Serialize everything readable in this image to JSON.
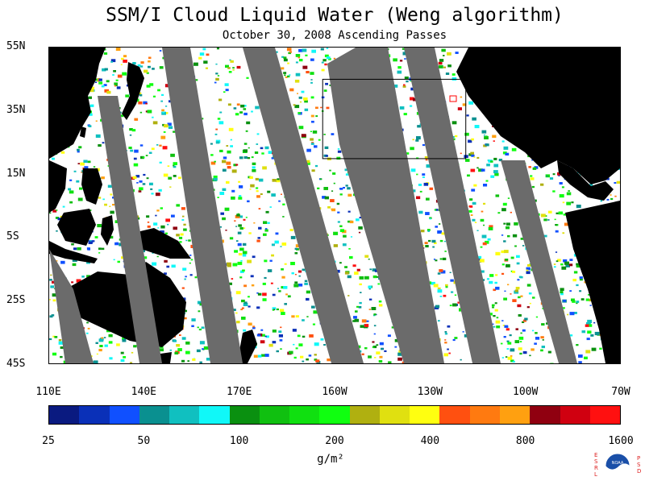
{
  "title": "SSM/I Cloud Liquid Water (Weng algorithm)",
  "subtitle": "October 30, 2008  Ascending Passes",
  "map": {
    "lat_labels": [
      "55N",
      "35N",
      "15N",
      "5S",
      "25S",
      "45S"
    ],
    "lat_values": [
      55,
      35,
      15,
      -5,
      -25,
      -45
    ],
    "lon_labels": [
      "110E",
      "140E",
      "170E",
      "160W",
      "130W",
      "100W",
      "70W"
    ],
    "lon_values": [
      110,
      140,
      170,
      200,
      230,
      260,
      290
    ],
    "extent": {
      "lon": [
        110,
        290
      ],
      "lat": [
        -45,
        55
      ]
    },
    "highlight_box": {
      "lon": [
        196,
        241
      ],
      "lat": [
        20,
        45
      ]
    },
    "colors": {
      "land": "#000000",
      "no_data_gap": "#6b6b6b",
      "ocean": "#ffffff",
      "box": "#000000",
      "marker": "#ff0000"
    }
  },
  "colorbar": {
    "colors": [
      "#0a1a80",
      "#0a30b8",
      "#1050ff",
      "#0a9090",
      "#10c0c0",
      "#10f8f8",
      "#0a9010",
      "#10c010",
      "#10e010",
      "#10ff10",
      "#b0b010",
      "#e0e010",
      "#ffff10",
      "#ff5010",
      "#ff7a10",
      "#ffa010",
      "#900010",
      "#d00010",
      "#ff1010"
    ],
    "labels": [
      "25",
      "50",
      "100",
      "200",
      "400",
      "800",
      "1600"
    ],
    "units": "g/m²"
  },
  "logo": {
    "letters_left": "ESRL",
    "letters_right": "PSD",
    "text": "NOAA"
  }
}
